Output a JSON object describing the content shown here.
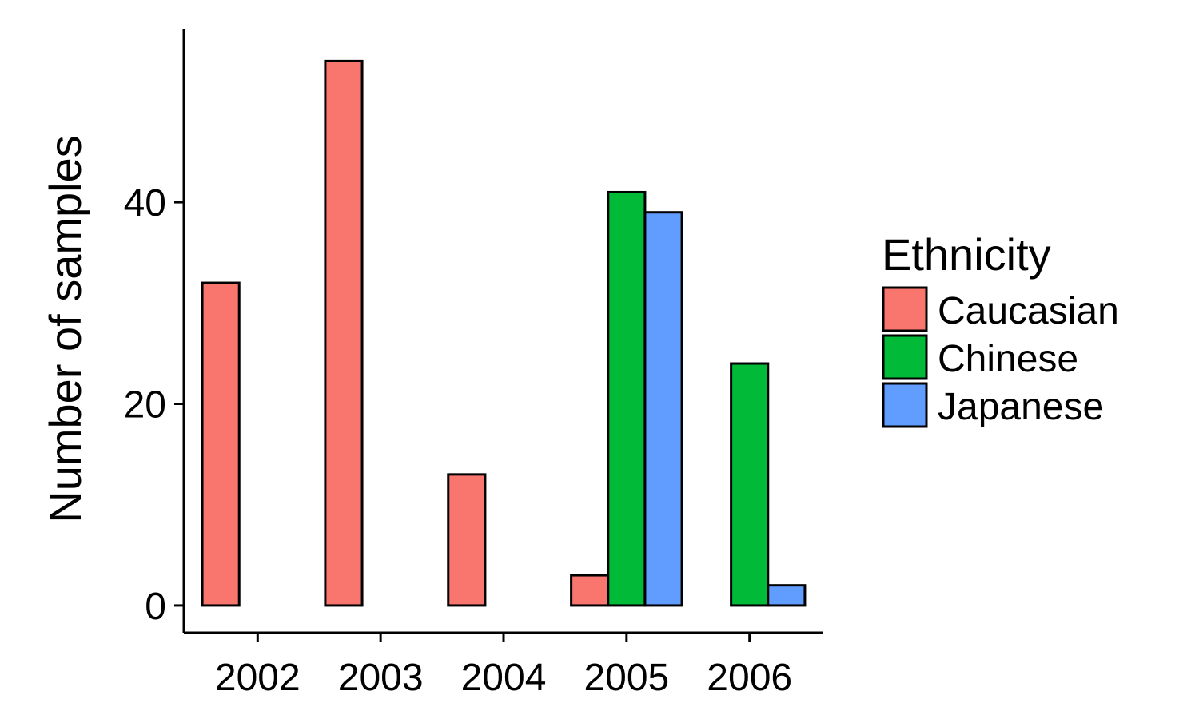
{
  "chart_data": {
    "type": "bar",
    "categories": [
      "2002",
      "2003",
      "2004",
      "2005",
      "2006"
    ],
    "series": [
      {
        "name": "Caucasian",
        "color": "#F8766D",
        "values": [
          32,
          54,
          13,
          3,
          0
        ]
      },
      {
        "name": "Chinese",
        "color": "#00BA38",
        "values": [
          0,
          0,
          0,
          41,
          24
        ]
      },
      {
        "name": "Japanese",
        "color": "#619CFF",
        "values": [
          0,
          0,
          0,
          39,
          2
        ]
      }
    ],
    "title": "",
    "xlabel": "",
    "ylabel": "Number of samples",
    "ylim": [
      -2.7,
      57.2
    ],
    "yticks": [
      0,
      20,
      40
    ],
    "grid": false,
    "legend": {
      "title": "Ethnicity",
      "position": "right"
    }
  }
}
